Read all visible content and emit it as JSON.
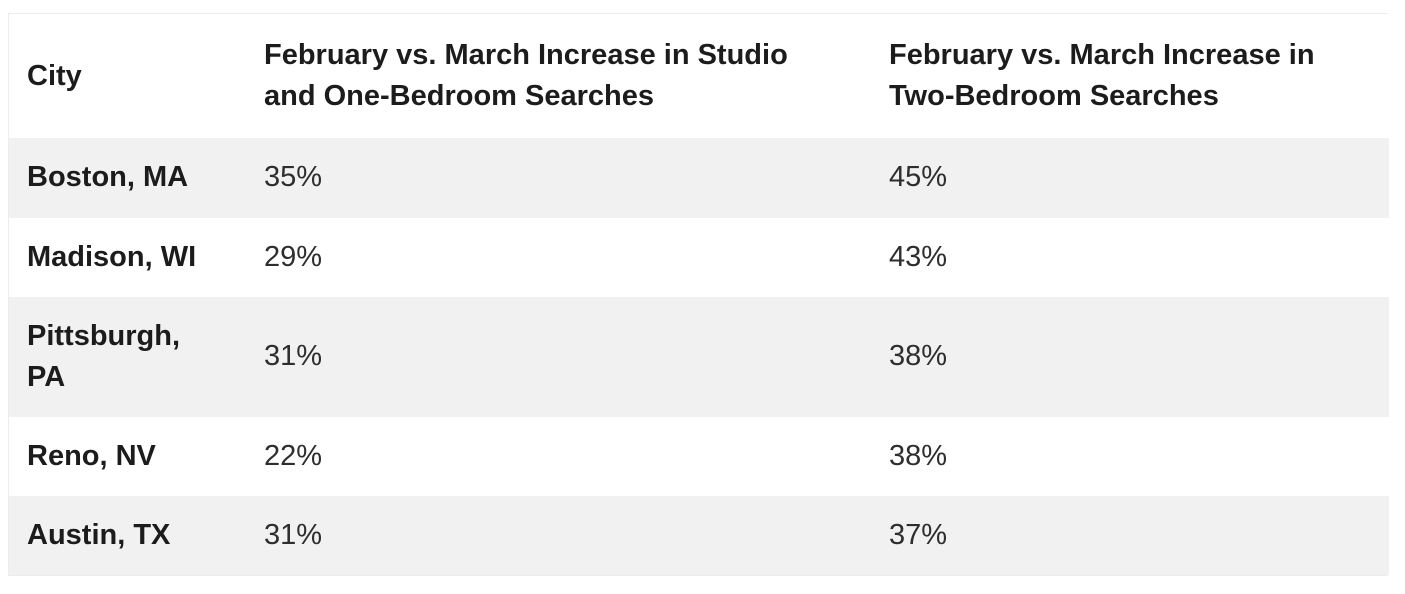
{
  "page": {
    "background": "#ffffff"
  },
  "colors": {
    "stripe_row_bg": "#f1f1f1",
    "plain_row_bg": "#ffffff",
    "table_border": "#ececec",
    "heading_text": "#1c1c1c",
    "value_text": "#2e2e2e"
  },
  "chart_data": {
    "type": "table",
    "columns": [
      "City",
      "February vs. March Increase in Studio and One-Bedroom Searches",
      "February vs. March Increase in Two-Bedroom Searches"
    ],
    "rows": [
      {
        "city": "Boston, MA",
        "studio_one_bedroom_increase": "35%",
        "two_bedroom_increase": "45%"
      },
      {
        "city": "Madison, WI",
        "studio_one_bedroom_increase": "29%",
        "two_bedroom_increase": "43%"
      },
      {
        "city": "Pittsburgh, PA",
        "studio_one_bedroom_increase": "31%",
        "two_bedroom_increase": "38%"
      },
      {
        "city": "Reno, NV",
        "studio_one_bedroom_increase": "22%",
        "two_bedroom_increase": "38%"
      },
      {
        "city": "Austin, TX",
        "studio_one_bedroom_increase": "31%",
        "two_bedroom_increase": "37%"
      }
    ],
    "layout": {
      "striped": true,
      "stripe_starts_on_first_data_row": true,
      "header_background": "#ffffff",
      "legend": "none",
      "grid": "off"
    }
  }
}
